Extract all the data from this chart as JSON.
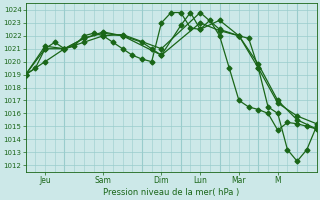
{
  "background_color": "#cce8e8",
  "plot_bg_color": "#cce8e8",
  "grid_color": "#99cccc",
  "line_color": "#1a6618",
  "xlabel": "Pression niveau de la mer( hPa )",
  "ylim": [
    1011.5,
    1024.5
  ],
  "yticks": [
    1012,
    1013,
    1014,
    1015,
    1016,
    1017,
    1018,
    1019,
    1020,
    1021,
    1022,
    1023,
    1024
  ],
  "day_labels": [
    "Jeu",
    "Sam",
    "Dim",
    "Lun",
    "Mar",
    "M"
  ],
  "day_x": [
    1.0,
    3.0,
    4.0,
    5.0,
    6.0,
    7.0
  ],
  "xlim": [
    0,
    7.5
  ],
  "series1_x": [
    0.0,
    0.25,
    0.5,
    0.75,
    1.0,
    1.25,
    1.5,
    1.75,
    2.0,
    2.25,
    2.5,
    2.75,
    3.0,
    3.25,
    3.5,
    3.75,
    4.0,
    4.25,
    4.5,
    4.75,
    5.0,
    5.25,
    5.5,
    5.75,
    6.0,
    6.25,
    6.5,
    6.75,
    7.0,
    7.25,
    7.5
  ],
  "series1_y": [
    1019.0,
    1019.5,
    1021.0,
    1021.5,
    1021.0,
    1021.2,
    1022.0,
    1022.2,
    1022.0,
    1021.5,
    1021.0,
    1020.5,
    1020.2,
    1020.0,
    1023.0,
    1023.8,
    1023.8,
    1022.6,
    1022.5,
    1023.2,
    1022.0,
    1019.5,
    1017.0,
    1016.5,
    1016.3,
    1016.0,
    1014.7,
    1015.3,
    1015.2,
    1015.0,
    1014.8
  ],
  "series2_x": [
    0.0,
    0.5,
    1.0,
    1.5,
    2.0,
    2.5,
    3.0,
    3.25,
    3.5,
    4.0,
    4.25,
    4.5,
    5.0,
    5.5,
    6.0,
    6.5,
    7.0,
    7.5
  ],
  "series2_y": [
    1019.0,
    1020.0,
    1021.0,
    1021.8,
    1022.3,
    1022.0,
    1021.5,
    1021.0,
    1020.5,
    1022.8,
    1023.8,
    1022.5,
    1023.2,
    1022.0,
    1019.8,
    1017.0,
    1015.5,
    1014.8
  ],
  "series3_x": [
    0.0,
    0.5,
    1.0,
    1.5,
    2.0,
    2.5,
    3.5,
    4.5,
    5.0,
    5.5,
    6.0,
    6.5,
    7.0,
    7.5
  ],
  "series3_y": [
    1019.0,
    1021.0,
    1021.0,
    1021.8,
    1022.2,
    1022.0,
    1020.5,
    1023.0,
    1022.4,
    1022.0,
    1019.5,
    1016.8,
    1015.8,
    1015.2
  ],
  "series4_x": [
    0.0,
    0.5,
    1.0,
    1.5,
    2.0,
    2.5,
    3.5,
    4.5,
    5.0,
    5.5,
    5.75,
    6.0,
    6.25,
    6.5,
    6.75,
    7.0,
    7.25,
    7.5
  ],
  "series4_y": [
    1019.0,
    1021.2,
    1021.0,
    1021.5,
    1022.0,
    1022.1,
    1021.0,
    1023.8,
    1022.5,
    1022.0,
    1021.8,
    1019.5,
    1016.5,
    1016.0,
    1013.2,
    1012.3,
    1013.2,
    1015.0
  ]
}
